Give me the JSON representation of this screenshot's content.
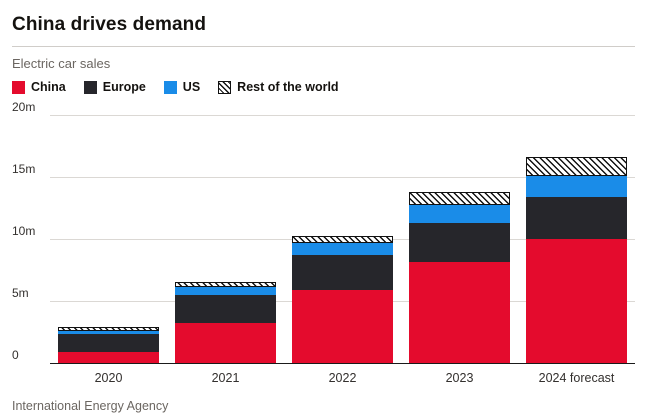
{
  "header": {
    "title": "China drives demand",
    "subtitle": "Electric car sales"
  },
  "legend": [
    {
      "label": "China",
      "type": "solid",
      "color": "#e40b2d"
    },
    {
      "label": "Europe",
      "type": "solid",
      "color": "#26262b"
    },
    {
      "label": "US",
      "type": "solid",
      "color": "#1a8ce8"
    },
    {
      "label": "Rest of the world",
      "type": "hatch",
      "color": "#111111"
    }
  ],
  "chart_data": {
    "type": "bar",
    "stacked": true,
    "title": "China drives demand",
    "subtitle": "Electric car sales",
    "categories": [
      "2020",
      "2021",
      "2022",
      "2023",
      "2024 forecast"
    ],
    "series": [
      {
        "name": "China",
        "style": "solid",
        "color": "#e40b2d",
        "values": [
          1.0,
          3.3,
          6.0,
          8.2,
          10.1
        ]
      },
      {
        "name": "Europe",
        "style": "solid",
        "color": "#26262b",
        "values": [
          1.4,
          2.3,
          2.8,
          3.2,
          3.4
        ]
      },
      {
        "name": "US",
        "style": "solid",
        "color": "#1a8ce8",
        "values": [
          0.3,
          0.6,
          1.0,
          1.4,
          1.7
        ]
      },
      {
        "name": "Rest of the world",
        "style": "hatch",
        "color": "#ffffff",
        "values": [
          0.3,
          0.4,
          0.5,
          1.1,
          1.5
        ]
      }
    ],
    "unit": "million vehicles",
    "ymax": 20,
    "yticks": [
      {
        "value": 0,
        "label": "0"
      },
      {
        "value": 5,
        "label": "5m"
      },
      {
        "value": 10,
        "label": "10m"
      },
      {
        "value": 15,
        "label": "15m"
      },
      {
        "value": 20,
        "label": "20m"
      }
    ],
    "grid": true,
    "legend_position": "top"
  },
  "footer": {
    "source": "International Energy Agency"
  }
}
